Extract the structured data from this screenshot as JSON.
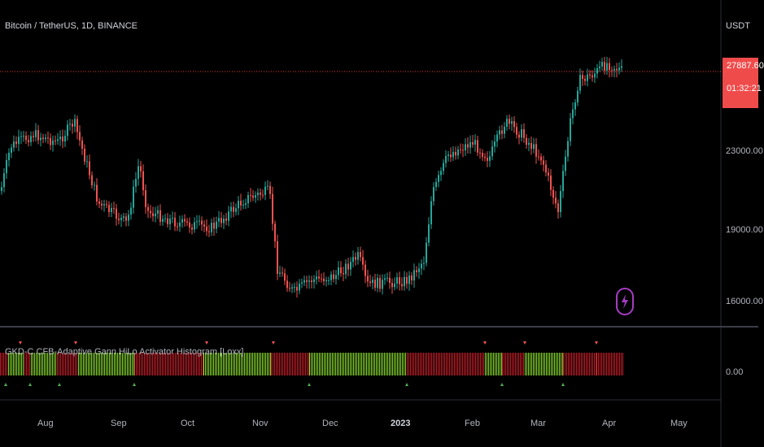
{
  "header": {
    "symbol_title": "Bitcoin / TetherUS, 1D, BINANCE",
    "currency": "USDT"
  },
  "price_scale": {
    "last_price": "27887.60",
    "countdown": "01:32:21",
    "ticks": [
      "23000.00",
      "19000.00",
      "16000.00"
    ]
  },
  "indicator": {
    "title": "GKD-C CFB-Adaptive Gann HiLo Activator Histogram [Loxx]",
    "zero_label": "0.00"
  },
  "time_axis": {
    "labels": [
      "Aug",
      "Sep",
      "Oct",
      "Nov",
      "Dec",
      "2023",
      "Feb",
      "Mar",
      "Apr",
      "May"
    ]
  },
  "icons": {
    "flash": "lightning-bolt-icon"
  },
  "colors": {
    "up": "#26a69a",
    "down": "#ef5350",
    "hist_green": "#8bdd2f",
    "hist_red": "#c71f2a",
    "last_price_box": "#f04b4b",
    "price_line": "#e53935",
    "flash_purple": "#a63cc4"
  }
}
